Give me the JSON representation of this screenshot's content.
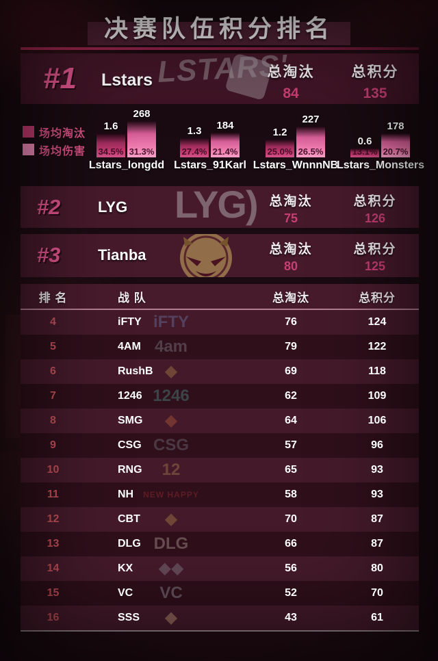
{
  "title": "决赛队伍积分排名",
  "labels": {
    "avg_elims": "场均淘汰",
    "avg_damage": "场均伤害",
    "total_elims": "总淘汰",
    "total_points": "总积分",
    "rank_header": "排 名",
    "team_header": "战 队"
  },
  "colors": {
    "accent_pink": "#e0558d",
    "value_pink": "#c73f73",
    "rank_red": "#c25059",
    "legend_pink": "#d34f80",
    "bar_elims": "#c23a6f",
    "bar_damage": "#f08ab8",
    "title_strip": "#4f2133",
    "divider": "#9c2450",
    "band_bg": "#451729",
    "row_light": "#441a2a",
    "row_dark": "#2e0f1a"
  },
  "top3": [
    {
      "rank_label": "#1",
      "team": "Lstars",
      "total_elims": "84",
      "total_points": "135",
      "logo_text": "LSTARS'"
    },
    {
      "rank_label": "#2",
      "team": "LYG",
      "total_elims": "75",
      "total_points": "126",
      "logo_text": "LYG)"
    },
    {
      "rank_label": "#3",
      "team": "Tianba",
      "total_elims": "80",
      "total_points": "125",
      "logo_icon": "tianba-angry-face"
    }
  ],
  "players": [
    {
      "name": "Lstars_longdd",
      "avg_elims": 1.6,
      "elims_pct": "34.5%",
      "avg_damage": 268,
      "damage_pct": "31.3%"
    },
    {
      "name": "Lstars_91Karl",
      "avg_elims": 1.3,
      "elims_pct": "27.4%",
      "avg_damage": 184,
      "damage_pct": "21.4%"
    },
    {
      "name": "Lstars_WnnnNB",
      "avg_elims": 1.2,
      "elims_pct": "25.0%",
      "avg_damage": 227,
      "damage_pct": "26.5%"
    },
    {
      "name": "Lstars_Monsters",
      "avg_elims": 0.6,
      "elims_pct": "13.1%",
      "avg_damage": 178,
      "damage_pct": "20.7%"
    }
  ],
  "table": {
    "rows": [
      {
        "rank": "4",
        "team": "iFTY",
        "total_elims": "76",
        "total_points": "124",
        "logo_text": "iFTY",
        "logo_color": "#7b95c9"
      },
      {
        "rank": "5",
        "team": "4AM",
        "total_elims": "79",
        "total_points": "122",
        "logo_text": "4am",
        "logo_color": "#9aa0a8"
      },
      {
        "rank": "6",
        "team": "RushB",
        "total_elims": "69",
        "total_points": "118",
        "logo_text": "◆",
        "logo_color": "#c9a14c"
      },
      {
        "rank": "7",
        "team": "1246",
        "total_elims": "62",
        "total_points": "109",
        "logo_text": "1246",
        "logo_color": "#57b3a4"
      },
      {
        "rank": "8",
        "team": "SMG",
        "total_elims": "64",
        "total_points": "106",
        "logo_text": "◆",
        "logo_color": "#d4703c"
      },
      {
        "rank": "9",
        "team": "CSG",
        "total_elims": "57",
        "total_points": "96",
        "logo_text": "CSG",
        "logo_color": "#8a8f99"
      },
      {
        "rank": "10",
        "team": "RNG",
        "total_elims": "65",
        "total_points": "93",
        "logo_text": "12",
        "logo_color": "#c9a05a"
      },
      {
        "rank": "11",
        "team": "NH",
        "total_elims": "58",
        "total_points": "93",
        "logo_text": "NEW HAPPY",
        "logo_color": "#c03a3a"
      },
      {
        "rank": "12",
        "team": "CBT",
        "total_elims": "70",
        "total_points": "87",
        "logo_text": "◆",
        "logo_color": "#c9a14c"
      },
      {
        "rank": "13",
        "team": "DLG",
        "total_elims": "66",
        "total_points": "87",
        "logo_text": "DLG",
        "logo_color": "#d8cfc0"
      },
      {
        "rank": "14",
        "team": "KX",
        "total_elims": "56",
        "total_points": "80",
        "logo_text": "◆◆",
        "logo_color": "#9aa0a8"
      },
      {
        "rank": "15",
        "team": "VC",
        "total_elims": "52",
        "total_points": "70",
        "logo_text": "VC",
        "logo_color": "#b3b8c0"
      },
      {
        "rank": "16",
        "team": "SSS",
        "total_elims": "43",
        "total_points": "61",
        "logo_text": "◆",
        "logo_color": "#d8b48a"
      }
    ]
  },
  "chart_data": [
    {
      "type": "bar",
      "title": "",
      "categories": [
        "Lstars_longdd",
        "Lstars_91Karl",
        "Lstars_WnnnNB",
        "Lstars_Monsters"
      ],
      "series": [
        {
          "name": "场均淘汰",
          "values": [
            1.6,
            1.3,
            1.2,
            0.6
          ],
          "share_pct": [
            34.5,
            27.4,
            25.0,
            13.1
          ]
        },
        {
          "name": "场均伤害",
          "values": [
            268,
            184,
            227,
            178
          ],
          "share_pct": [
            31.3,
            21.4,
            26.5,
            20.7
          ]
        }
      ],
      "legend_position": "left",
      "grid": false,
      "xlabel": "",
      "ylabel": ""
    },
    {
      "type": "table",
      "title": "决赛队伍积分排名",
      "columns": [
        "排 名",
        "战 队",
        "总淘汰",
        "总积分"
      ],
      "rows": [
        [
          "1",
          "Lstars",
          84,
          135
        ],
        [
          "2",
          "LYG",
          75,
          126
        ],
        [
          "3",
          "Tianba",
          80,
          125
        ],
        [
          "4",
          "iFTY",
          76,
          124
        ],
        [
          "5",
          "4AM",
          79,
          122
        ],
        [
          "6",
          "RushB",
          69,
          118
        ],
        [
          "7",
          "1246",
          62,
          109
        ],
        [
          "8",
          "SMG",
          64,
          106
        ],
        [
          "9",
          "CSG",
          57,
          96
        ],
        [
          "10",
          "RNG",
          65,
          93
        ],
        [
          "11",
          "NH",
          58,
          93
        ],
        [
          "12",
          "CBT",
          70,
          87
        ],
        [
          "13",
          "DLG",
          66,
          87
        ],
        [
          "14",
          "KX",
          56,
          80
        ],
        [
          "15",
          "VC",
          52,
          70
        ],
        [
          "16",
          "SSS",
          43,
          61
        ]
      ]
    }
  ]
}
